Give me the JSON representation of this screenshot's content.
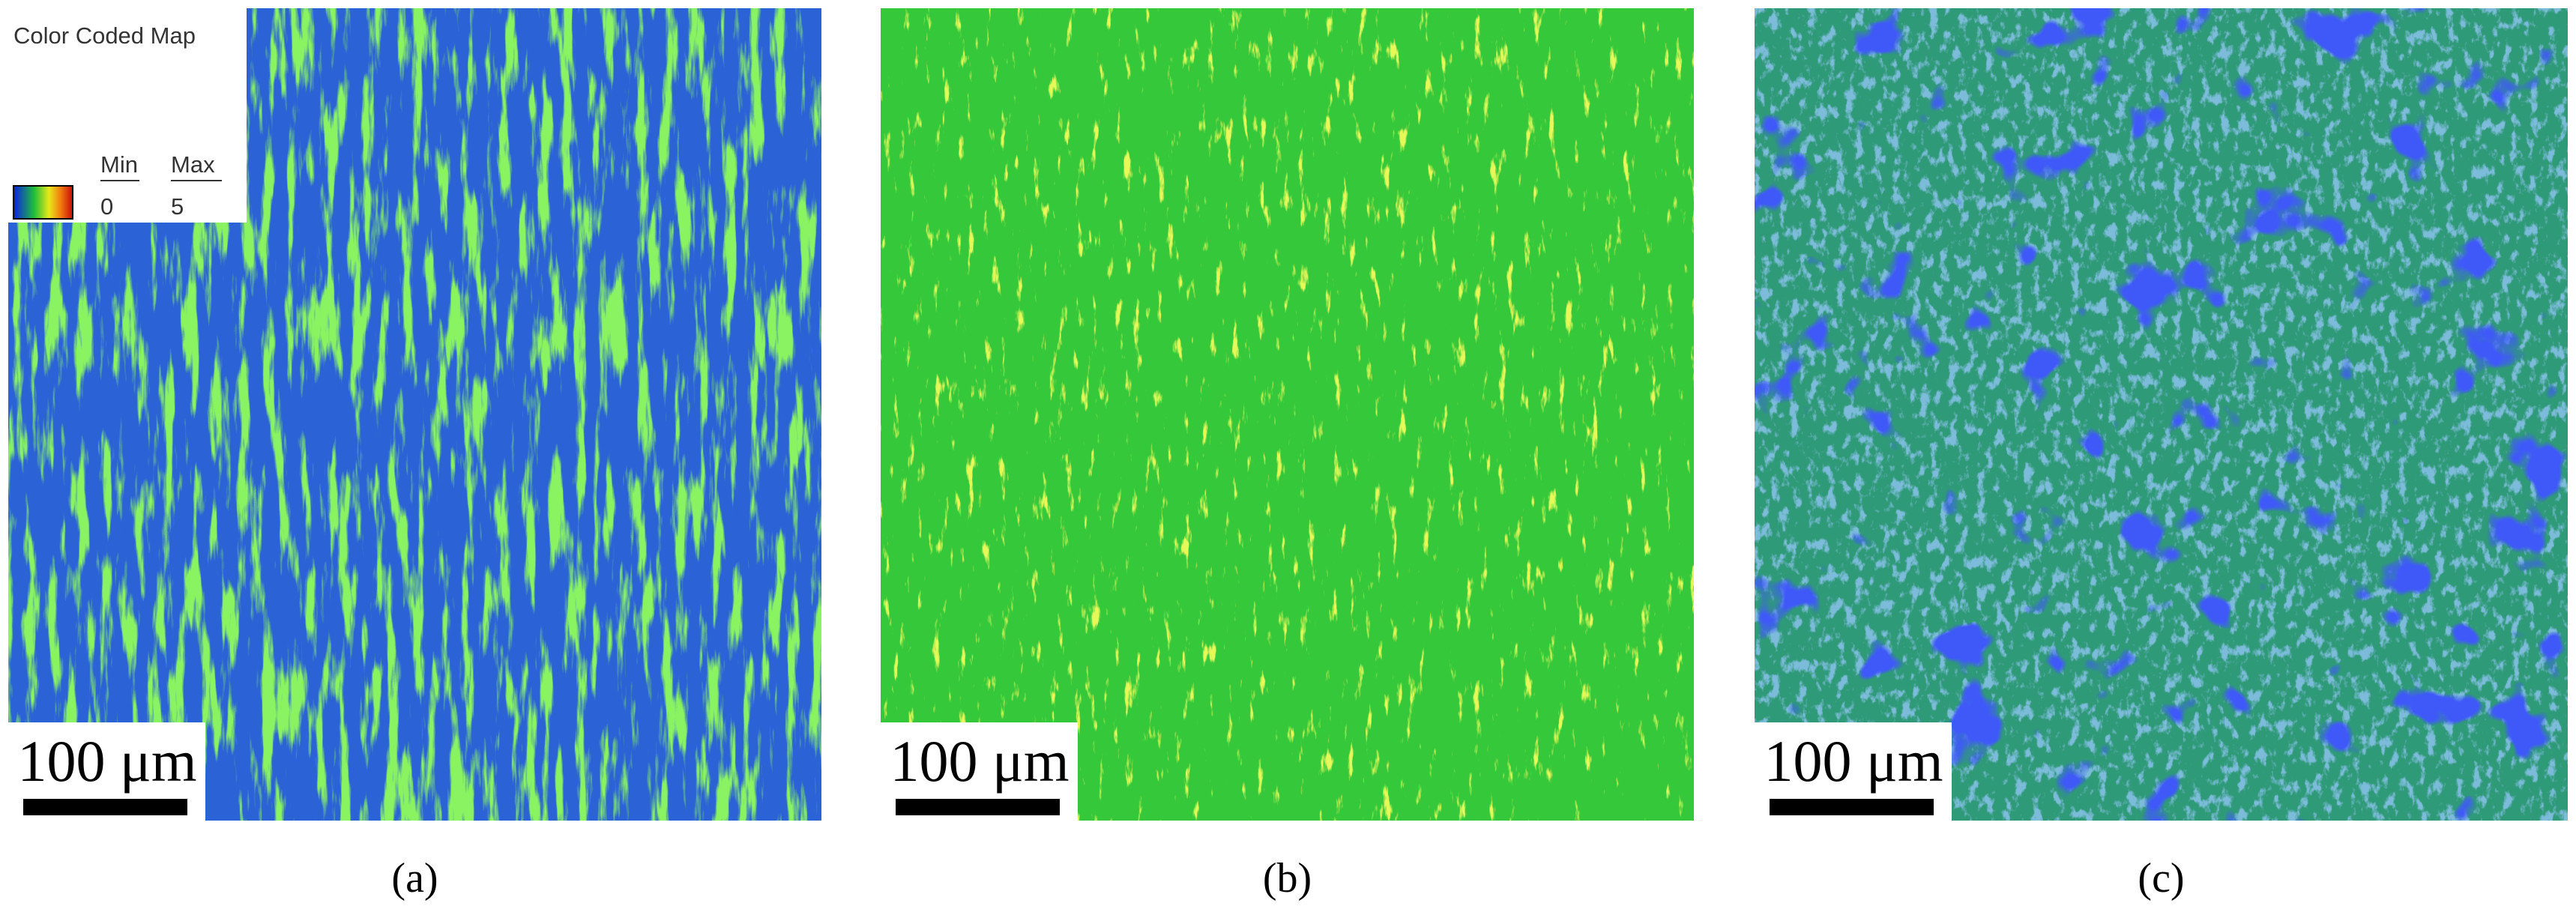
{
  "legend": {
    "title": "Color Coded Map",
    "min_label": "Min",
    "max_label": "Max",
    "min": 0,
    "max": 5
  },
  "panels": [
    {
      "scale_bar": "100 μm",
      "caption": "(a)"
    },
    {
      "scale_bar": "100 μm",
      "caption": "(b)"
    },
    {
      "scale_bar": "100 μm",
      "caption": "(c)"
    }
  ]
}
